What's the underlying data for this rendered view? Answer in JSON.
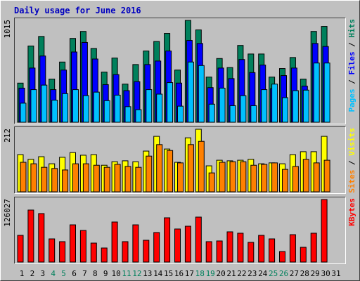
{
  "title": "Daily usage for June 2016",
  "legend_separator": " / ",
  "chart_data": [
    {
      "type": "bar",
      "ylim": [
        0,
        1015
      ],
      "yticks": [
        1015
      ],
      "series": [
        {
          "name": "Hits",
          "color": "#00805c",
          "values": [
            390,
            760,
            855,
            430,
            600,
            835,
            905,
            735,
            500,
            640,
            380,
            575,
            710,
            805,
            885,
            520,
            1015,
            920,
            450,
            635,
            545,
            765,
            680,
            680,
            450,
            535,
            645,
            430,
            905,
            955,
            null
          ]
        },
        {
          "name": "Files",
          "color": "#0000ff",
          "values": [
            340,
            540,
            660,
            325,
            520,
            700,
            795,
            630,
            375,
            475,
            315,
            405,
            575,
            610,
            710,
            390,
            815,
            785,
            345,
            540,
            435,
            625,
            495,
            570,
            335,
            465,
            540,
            360,
            785,
            755,
            null
          ]
        },
        {
          "name": "Pages",
          "color": "#00c0ff",
          "values": [
            190,
            325,
            370,
            220,
            285,
            325,
            265,
            300,
            215,
            270,
            155,
            125,
            325,
            280,
            395,
            160,
            600,
            565,
            180,
            340,
            165,
            265,
            165,
            325,
            380,
            245,
            315,
            320,
            590,
            590,
            null
          ]
        }
      ]
    },
    {
      "type": "bar",
      "ylim": [
        0,
        212
      ],
      "yticks": [
        212
      ],
      "series": [
        {
          "name": "Visits",
          "color": "#ffff00",
          "values": [
            126,
            110,
            119,
            95,
            117,
            133,
            124,
            126,
            90,
            102,
            105,
            102,
            138,
            188,
            145,
            100,
            183,
            212,
            88,
            107,
            105,
            107,
            110,
            95,
            98,
            95,
            126,
            136,
            136,
            188,
            null
          ]
        },
        {
          "name": "Sites",
          "color": "#ff8000",
          "values": [
            100,
            95,
            83,
            79,
            74,
            95,
            95,
            90,
            83,
            93,
            86,
            83,
            121,
            160,
            140,
            98,
            160,
            171,
            64,
            100,
            102,
            102,
            90,
            93,
            98,
            76,
            86,
            110,
            98,
            107,
            null
          ]
        }
      ]
    },
    {
      "type": "bar",
      "ylim": [
        0,
        126027
      ],
      "yticks": [
        126027
      ],
      "categories": [
        "1",
        "2",
        "3",
        "4",
        "5",
        "6",
        "7",
        "8",
        "9",
        "10",
        "11",
        "12",
        "13",
        "14",
        "15",
        "16",
        "17",
        "18",
        "19",
        "20",
        "21",
        "22",
        "23",
        "24",
        "25",
        "26",
        "27",
        "28",
        "29",
        "30",
        "31"
      ],
      "category_colors": [
        "#000000",
        "#000000",
        "#000000",
        "#00805c",
        "#00805c",
        "#000000",
        "#000000",
        "#000000",
        "#000000",
        "#000000",
        "#00805c",
        "#00805c",
        "#000000",
        "#000000",
        "#000000",
        "#000000",
        "#000000",
        "#00805c",
        "#00805c",
        "#000000",
        "#000000",
        "#000000",
        "#000000",
        "#000000",
        "#00805c",
        "#00805c",
        "#000000",
        "#000000",
        "#000000",
        "#000000",
        "#000000"
      ],
      "series": [
        {
          "name": "KBytes",
          "color": "#ff0000",
          "values": [
            53800,
            104800,
            97700,
            46700,
            41100,
            75000,
            63700,
            38200,
            28300,
            80700,
            41100,
            75000,
            43900,
            59500,
            89200,
            66600,
            72200,
            90600,
            41100,
            42500,
            60900,
            58100,
            39700,
            53800,
            46700,
            21200,
            55200,
            29700,
            58100,
            126027,
            null
          ]
        }
      ]
    }
  ]
}
